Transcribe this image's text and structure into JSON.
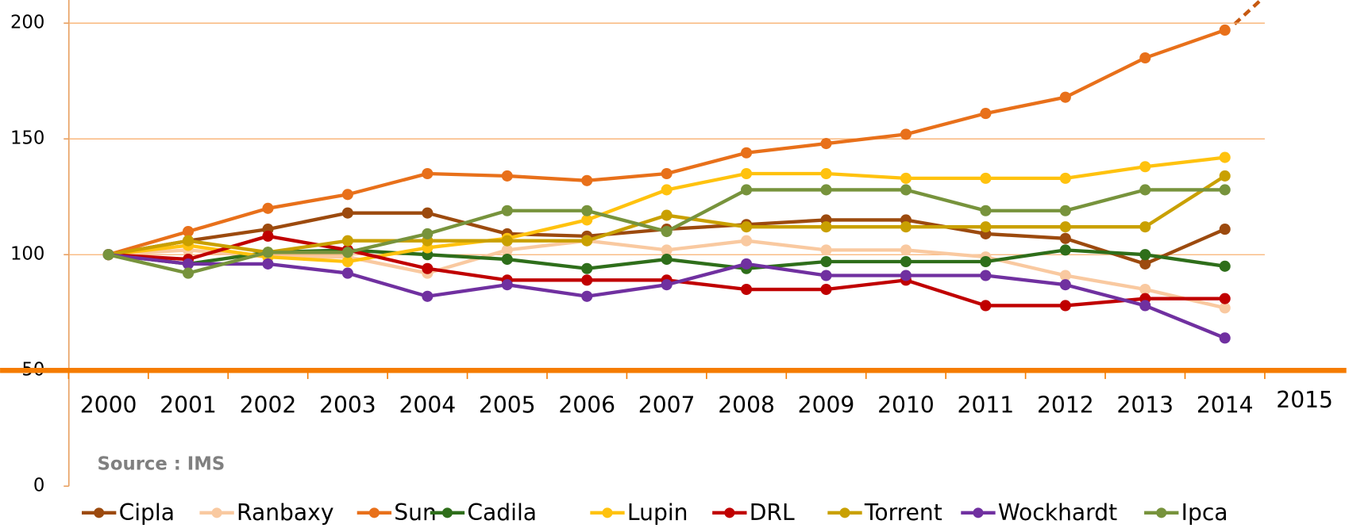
{
  "chart_data": {
    "type": "line",
    "categories": [
      "2000",
      "2001",
      "2002",
      "2003",
      "2004",
      "2005",
      "2006",
      "2007",
      "2008",
      "2009",
      "2010",
      "2011",
      "2012",
      "2013",
      "2014",
      "2015"
    ],
    "ylim": [
      0,
      210
    ],
    "yticks": [
      0,
      50,
      100,
      150,
      200
    ],
    "grid": true,
    "annotation": "Source : IMS",
    "legend": "bottom",
    "series": [
      {
        "name": "Cipla",
        "color": "#9c4a0e",
        "values": [
          100,
          106,
          111,
          118,
          118,
          109,
          108,
          111,
          113,
          115,
          115,
          109,
          107,
          96,
          111,
          null
        ]
      },
      {
        "name": "Ranbaxy",
        "color": "#f9c9a0",
        "values": [
          100,
          102,
          99,
          99,
          92,
          102,
          106,
          102,
          106,
          102,
          102,
          99,
          91,
          85,
          77,
          null
        ]
      },
      {
        "name": "Sun",
        "color": "#e8701a",
        "values": [
          100,
          110,
          120,
          126,
          135,
          134,
          132,
          135,
          144,
          148,
          152,
          161,
          168,
          185,
          197,
          null
        ]
      },
      {
        "name": "Cadila",
        "color": "#2e6e1a",
        "values": [
          100,
          96,
          101,
          102,
          100,
          98,
          94,
          98,
          94,
          97,
          97,
          97,
          102,
          100,
          95,
          null
        ]
      },
      {
        "name": "Lupin",
        "color": "#ffc20e",
        "values": [
          100,
          104,
          99,
          97,
          103,
          107,
          115,
          128,
          135,
          135,
          133,
          133,
          133,
          138,
          142,
          null
        ]
      },
      {
        "name": "DRL",
        "color": "#c00000",
        "values": [
          100,
          98,
          108,
          102,
          94,
          89,
          89,
          89,
          85,
          85,
          89,
          78,
          78,
          81,
          81,
          null
        ]
      },
      {
        "name": "Torrent",
        "color": "#c9a000",
        "values": [
          100,
          106,
          101,
          106,
          106,
          106,
          106,
          117,
          112,
          112,
          112,
          112,
          112,
          112,
          134,
          null
        ]
      },
      {
        "name": "Wockhardt",
        "color": "#7030a0",
        "values": [
          100,
          96,
          96,
          92,
          82,
          87,
          82,
          87,
          96,
          91,
          91,
          91,
          87,
          78,
          64,
          null
        ]
      },
      {
        "name": "Ipca",
        "color": "#77933c",
        "values": [
          100,
          92,
          101,
          101,
          109,
          119,
          119,
          110,
          128,
          128,
          128,
          119,
          119,
          128,
          128,
          null
        ]
      }
    ]
  }
}
